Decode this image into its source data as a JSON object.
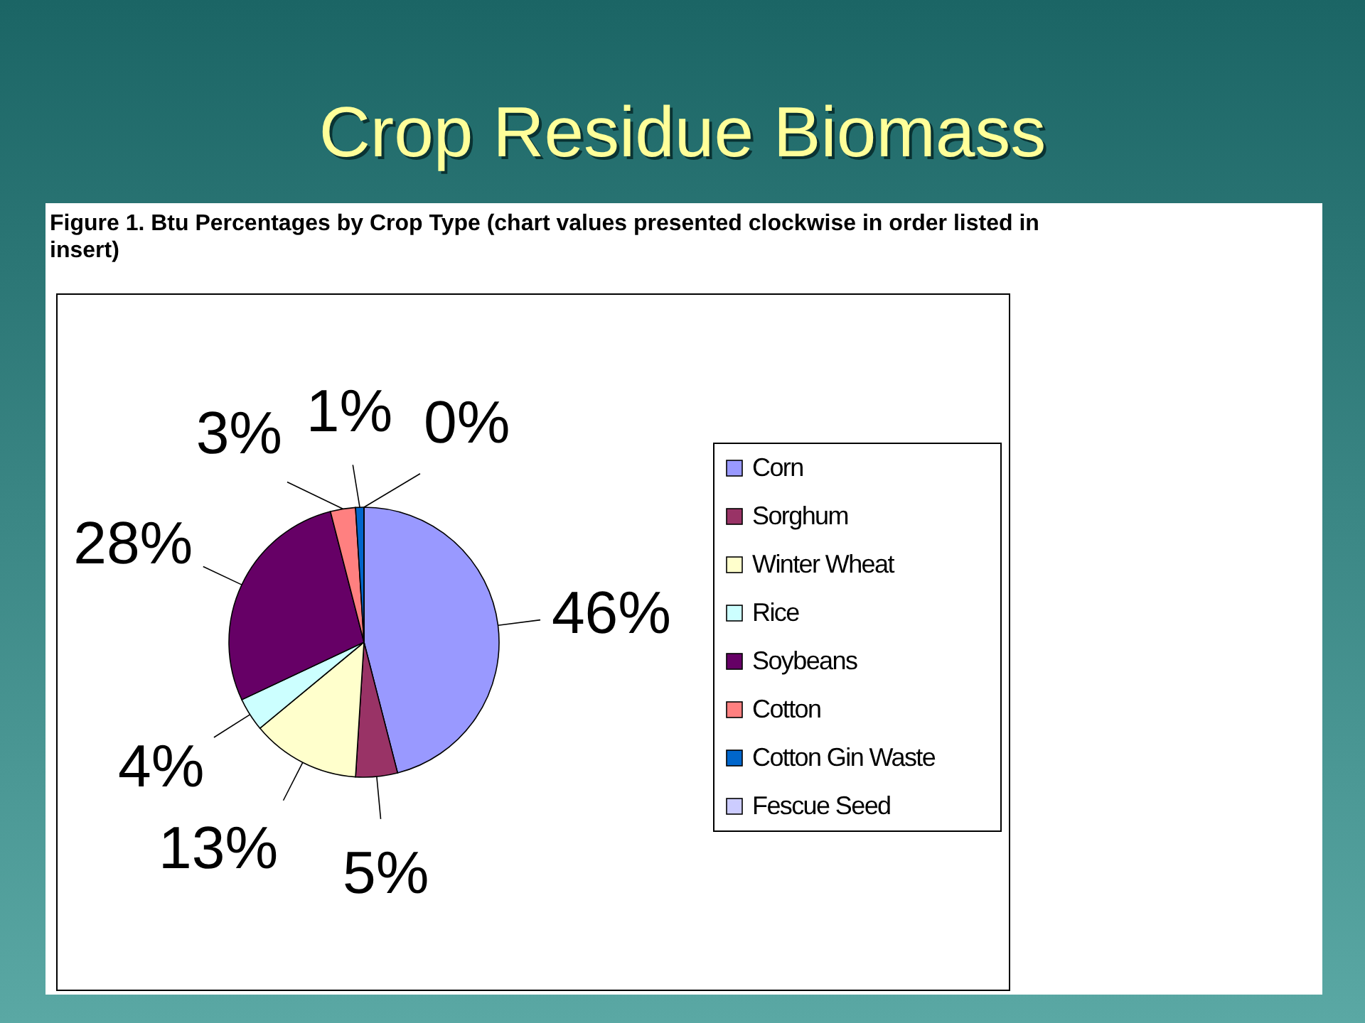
{
  "chart_data": {
    "type": "pie",
    "title": "Crop Residue Biomass",
    "subtitle": "Figure 1.  Btu Percentages by Crop Type (chart values presented clockwise in order listed in insert)",
    "categories": [
      "Corn",
      "Sorghum",
      "Winter Wheat",
      "Rice",
      "Soybeans",
      "Cotton",
      "Cotton Gin Waste",
      "Fescue Seed"
    ],
    "values": [
      46,
      5,
      13,
      4,
      28,
      3,
      1,
      0
    ],
    "colors": [
      "#9999ff",
      "#993366",
      "#ffffcc",
      "#ccffff",
      "#660066",
      "#ff8080",
      "#0066cc",
      "#ccccff"
    ],
    "value_labels": [
      "46%",
      "5%",
      "13%",
      "4%",
      "28%",
      "3%",
      "1%",
      "0%"
    ],
    "legend": "right"
  }
}
